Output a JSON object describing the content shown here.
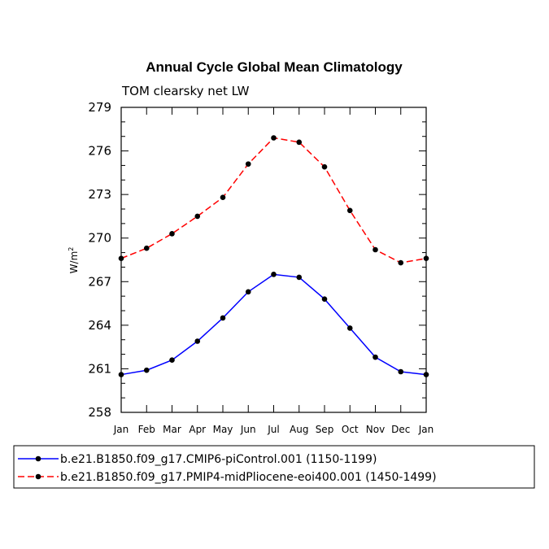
{
  "chart_data": {
    "type": "line",
    "title": "Annual Cycle Global Mean Climatology",
    "subtitle": "TOM clearsky net LW",
    "ylabel": "W/m",
    "ylabel_sup": "2",
    "xlabel": "",
    "ylim": [
      258,
      279
    ],
    "yticks": [
      "258",
      "261",
      "264",
      "267",
      "270",
      "273",
      "276",
      "279"
    ],
    "categories": [
      "Jan",
      "Feb",
      "Mar",
      "Apr",
      "May",
      "Jun",
      "Jul",
      "Aug",
      "Sep",
      "Oct",
      "Nov",
      "Dec",
      "Jan"
    ],
    "series": [
      {
        "name": "b.e21.B1850.f09_g17.CMIP6-piControl.001 (1150-1199)",
        "color": "#0000ff",
        "style": "solid",
        "values": [
          260.6,
          260.9,
          261.6,
          262.9,
          264.5,
          266.3,
          267.5,
          267.3,
          265.8,
          263.8,
          261.8,
          260.8,
          260.6
        ]
      },
      {
        "name": "b.e21.B1850.f09_g17.PMIP4-midPliocene-eoi400.001 (1450-1499)",
        "color": "#ff0000",
        "style": "dashed",
        "values": [
          268.6,
          269.3,
          270.3,
          271.5,
          272.8,
          275.1,
          276.9,
          276.6,
          274.9,
          271.9,
          269.2,
          268.3,
          268.6
        ]
      }
    ]
  }
}
